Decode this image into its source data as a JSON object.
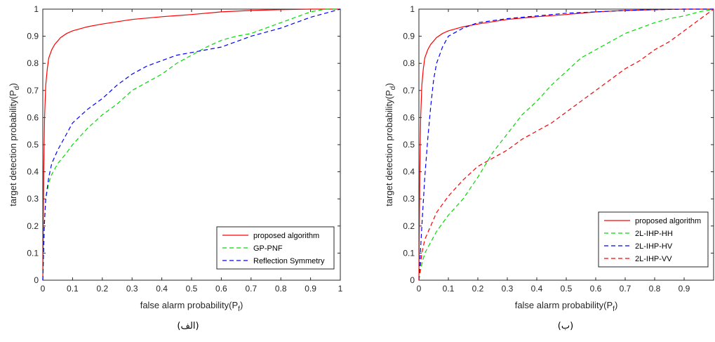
{
  "chart_data": [
    {
      "type": "line",
      "caption": "(الف)",
      "xlabel": "false alarm probability(P",
      "xlabel_sub": "f",
      "xlabel_end": ")",
      "ylabel": "target detection probability(P",
      "ylabel_sub": "d",
      "ylabel_end": ")",
      "xlim": [
        0,
        1
      ],
      "ylim": [
        0,
        1
      ],
      "x_ticks": [
        "0",
        "0.1",
        "0.2",
        "0.3",
        "0.4",
        "0.5",
        "0.6",
        "0.7",
        "0.8",
        "0.9",
        "1"
      ],
      "y_ticks": [
        "0",
        "0.1",
        "0.2",
        "0.3",
        "0.4",
        "0.5",
        "0.6",
        "0.7",
        "0.8",
        "0.9",
        "1"
      ],
      "grid": false,
      "legend_position": "bottom-right",
      "series": [
        {
          "name": "proposed algorithm",
          "color": "#ff0000",
          "dash": "solid",
          "x": [
            0,
            0.003,
            0.006,
            0.01,
            0.015,
            0.02,
            0.03,
            0.04,
            0.06,
            0.08,
            0.1,
            0.15,
            0.2,
            0.3,
            0.4,
            0.5,
            0.6,
            0.7,
            0.8,
            0.9,
            1.0
          ],
          "y": [
            0,
            0.4,
            0.6,
            0.72,
            0.78,
            0.82,
            0.85,
            0.87,
            0.895,
            0.91,
            0.92,
            0.935,
            0.945,
            0.962,
            0.972,
            0.98,
            0.99,
            0.995,
            0.998,
            1.0,
            1.0
          ]
        },
        {
          "name": "GP-PNF",
          "color": "#00dd00",
          "dash": "dashed",
          "x": [
            0,
            0.005,
            0.01,
            0.02,
            0.03,
            0.05,
            0.08,
            0.1,
            0.15,
            0.2,
            0.25,
            0.3,
            0.35,
            0.4,
            0.45,
            0.5,
            0.55,
            0.6,
            0.65,
            0.7,
            0.75,
            0.8,
            0.85,
            0.9,
            0.95,
            1.0
          ],
          "y": [
            0,
            0.2,
            0.3,
            0.36,
            0.39,
            0.43,
            0.47,
            0.5,
            0.56,
            0.61,
            0.65,
            0.7,
            0.73,
            0.76,
            0.8,
            0.83,
            0.86,
            0.885,
            0.9,
            0.91,
            0.93,
            0.95,
            0.97,
            0.99,
            1.0,
            1.0
          ]
        },
        {
          "name": "Reflection Symmetry",
          "color": "#0000ff",
          "dash": "dashed",
          "x": [
            0,
            0.005,
            0.01,
            0.02,
            0.03,
            0.05,
            0.07,
            0.1,
            0.15,
            0.2,
            0.25,
            0.3,
            0.35,
            0.4,
            0.45,
            0.5,
            0.55,
            0.6,
            0.65,
            0.7,
            0.75,
            0.8,
            0.85,
            0.9,
            0.95,
            1.0
          ],
          "y": [
            0,
            0.2,
            0.3,
            0.38,
            0.43,
            0.48,
            0.52,
            0.58,
            0.63,
            0.67,
            0.72,
            0.76,
            0.79,
            0.81,
            0.83,
            0.84,
            0.85,
            0.86,
            0.88,
            0.9,
            0.915,
            0.93,
            0.95,
            0.97,
            0.985,
            1.0
          ]
        }
      ]
    },
    {
      "type": "line",
      "caption": "(ب)",
      "xlabel": "false alarm probability(P",
      "xlabel_sub": "f",
      "xlabel_end": ")",
      "ylabel": "target detection probability(P",
      "ylabel_sub": "d",
      "ylabel_end": ")",
      "xlim": [
        0,
        1
      ],
      "ylim": [
        0,
        1
      ],
      "x_ticks": [
        "0",
        "0.1",
        "0.2",
        "0.3",
        "0.4",
        "0.5",
        "0.6",
        "0.7",
        "0.8",
        "0.9"
      ],
      "y_ticks": [
        "0",
        "0.1",
        "0.2",
        "0.3",
        "0.4",
        "0.5",
        "0.6",
        "0.7",
        "0.8",
        "0.9",
        "1"
      ],
      "grid": false,
      "legend_position": "bottom-right",
      "series": [
        {
          "name": "proposed algorithm",
          "color": "#ff0000",
          "dash": "solid",
          "x": [
            0,
            0.003,
            0.006,
            0.01,
            0.015,
            0.02,
            0.03,
            0.04,
            0.06,
            0.08,
            0.1,
            0.15,
            0.2,
            0.3,
            0.4,
            0.5,
            0.6,
            0.7,
            0.8,
            0.9,
            1.0
          ],
          "y": [
            0,
            0.4,
            0.6,
            0.72,
            0.78,
            0.82,
            0.85,
            0.87,
            0.895,
            0.91,
            0.92,
            0.935,
            0.945,
            0.962,
            0.972,
            0.98,
            0.99,
            0.995,
            0.998,
            1.0,
            1.0
          ]
        },
        {
          "name": "2L-IHP-HH",
          "color": "#00dd00",
          "dash": "dashed",
          "x": [
            0,
            0.01,
            0.02,
            0.04,
            0.06,
            0.08,
            0.1,
            0.15,
            0.2,
            0.25,
            0.3,
            0.35,
            0.4,
            0.45,
            0.5,
            0.55,
            0.6,
            0.65,
            0.7,
            0.75,
            0.8,
            0.85,
            0.9,
            0.95,
            1.0
          ],
          "y": [
            0,
            0.06,
            0.1,
            0.14,
            0.18,
            0.21,
            0.24,
            0.3,
            0.38,
            0.47,
            0.54,
            0.61,
            0.66,
            0.72,
            0.77,
            0.82,
            0.85,
            0.88,
            0.91,
            0.93,
            0.95,
            0.965,
            0.975,
            0.99,
            1.0
          ]
        },
        {
          "name": "2L-IHP-HV",
          "color": "#0000ff",
          "dash": "dashed",
          "x": [
            0,
            0.005,
            0.01,
            0.02,
            0.03,
            0.04,
            0.05,
            0.06,
            0.08,
            0.1,
            0.15,
            0.2,
            0.3,
            0.4,
            0.5,
            0.6,
            0.7,
            0.8,
            0.9,
            1.0
          ],
          "y": [
            0,
            0.1,
            0.2,
            0.38,
            0.52,
            0.64,
            0.74,
            0.8,
            0.86,
            0.9,
            0.93,
            0.95,
            0.965,
            0.975,
            0.985,
            0.99,
            0.995,
            0.998,
            1.0,
            1.0
          ]
        },
        {
          "name": "2L-IHP-VV",
          "color": "#ff0000",
          "dash": "dashed",
          "x": [
            0,
            0.005,
            0.01,
            0.02,
            0.04,
            0.06,
            0.1,
            0.15,
            0.2,
            0.25,
            0.3,
            0.35,
            0.4,
            0.45,
            0.5,
            0.55,
            0.6,
            0.65,
            0.7,
            0.75,
            0.8,
            0.85,
            0.9,
            0.95,
            1.0
          ],
          "y": [
            0,
            0.05,
            0.1,
            0.15,
            0.2,
            0.25,
            0.31,
            0.37,
            0.42,
            0.45,
            0.48,
            0.52,
            0.55,
            0.58,
            0.62,
            0.66,
            0.7,
            0.74,
            0.78,
            0.81,
            0.85,
            0.88,
            0.92,
            0.96,
            1.0
          ]
        }
      ]
    }
  ]
}
